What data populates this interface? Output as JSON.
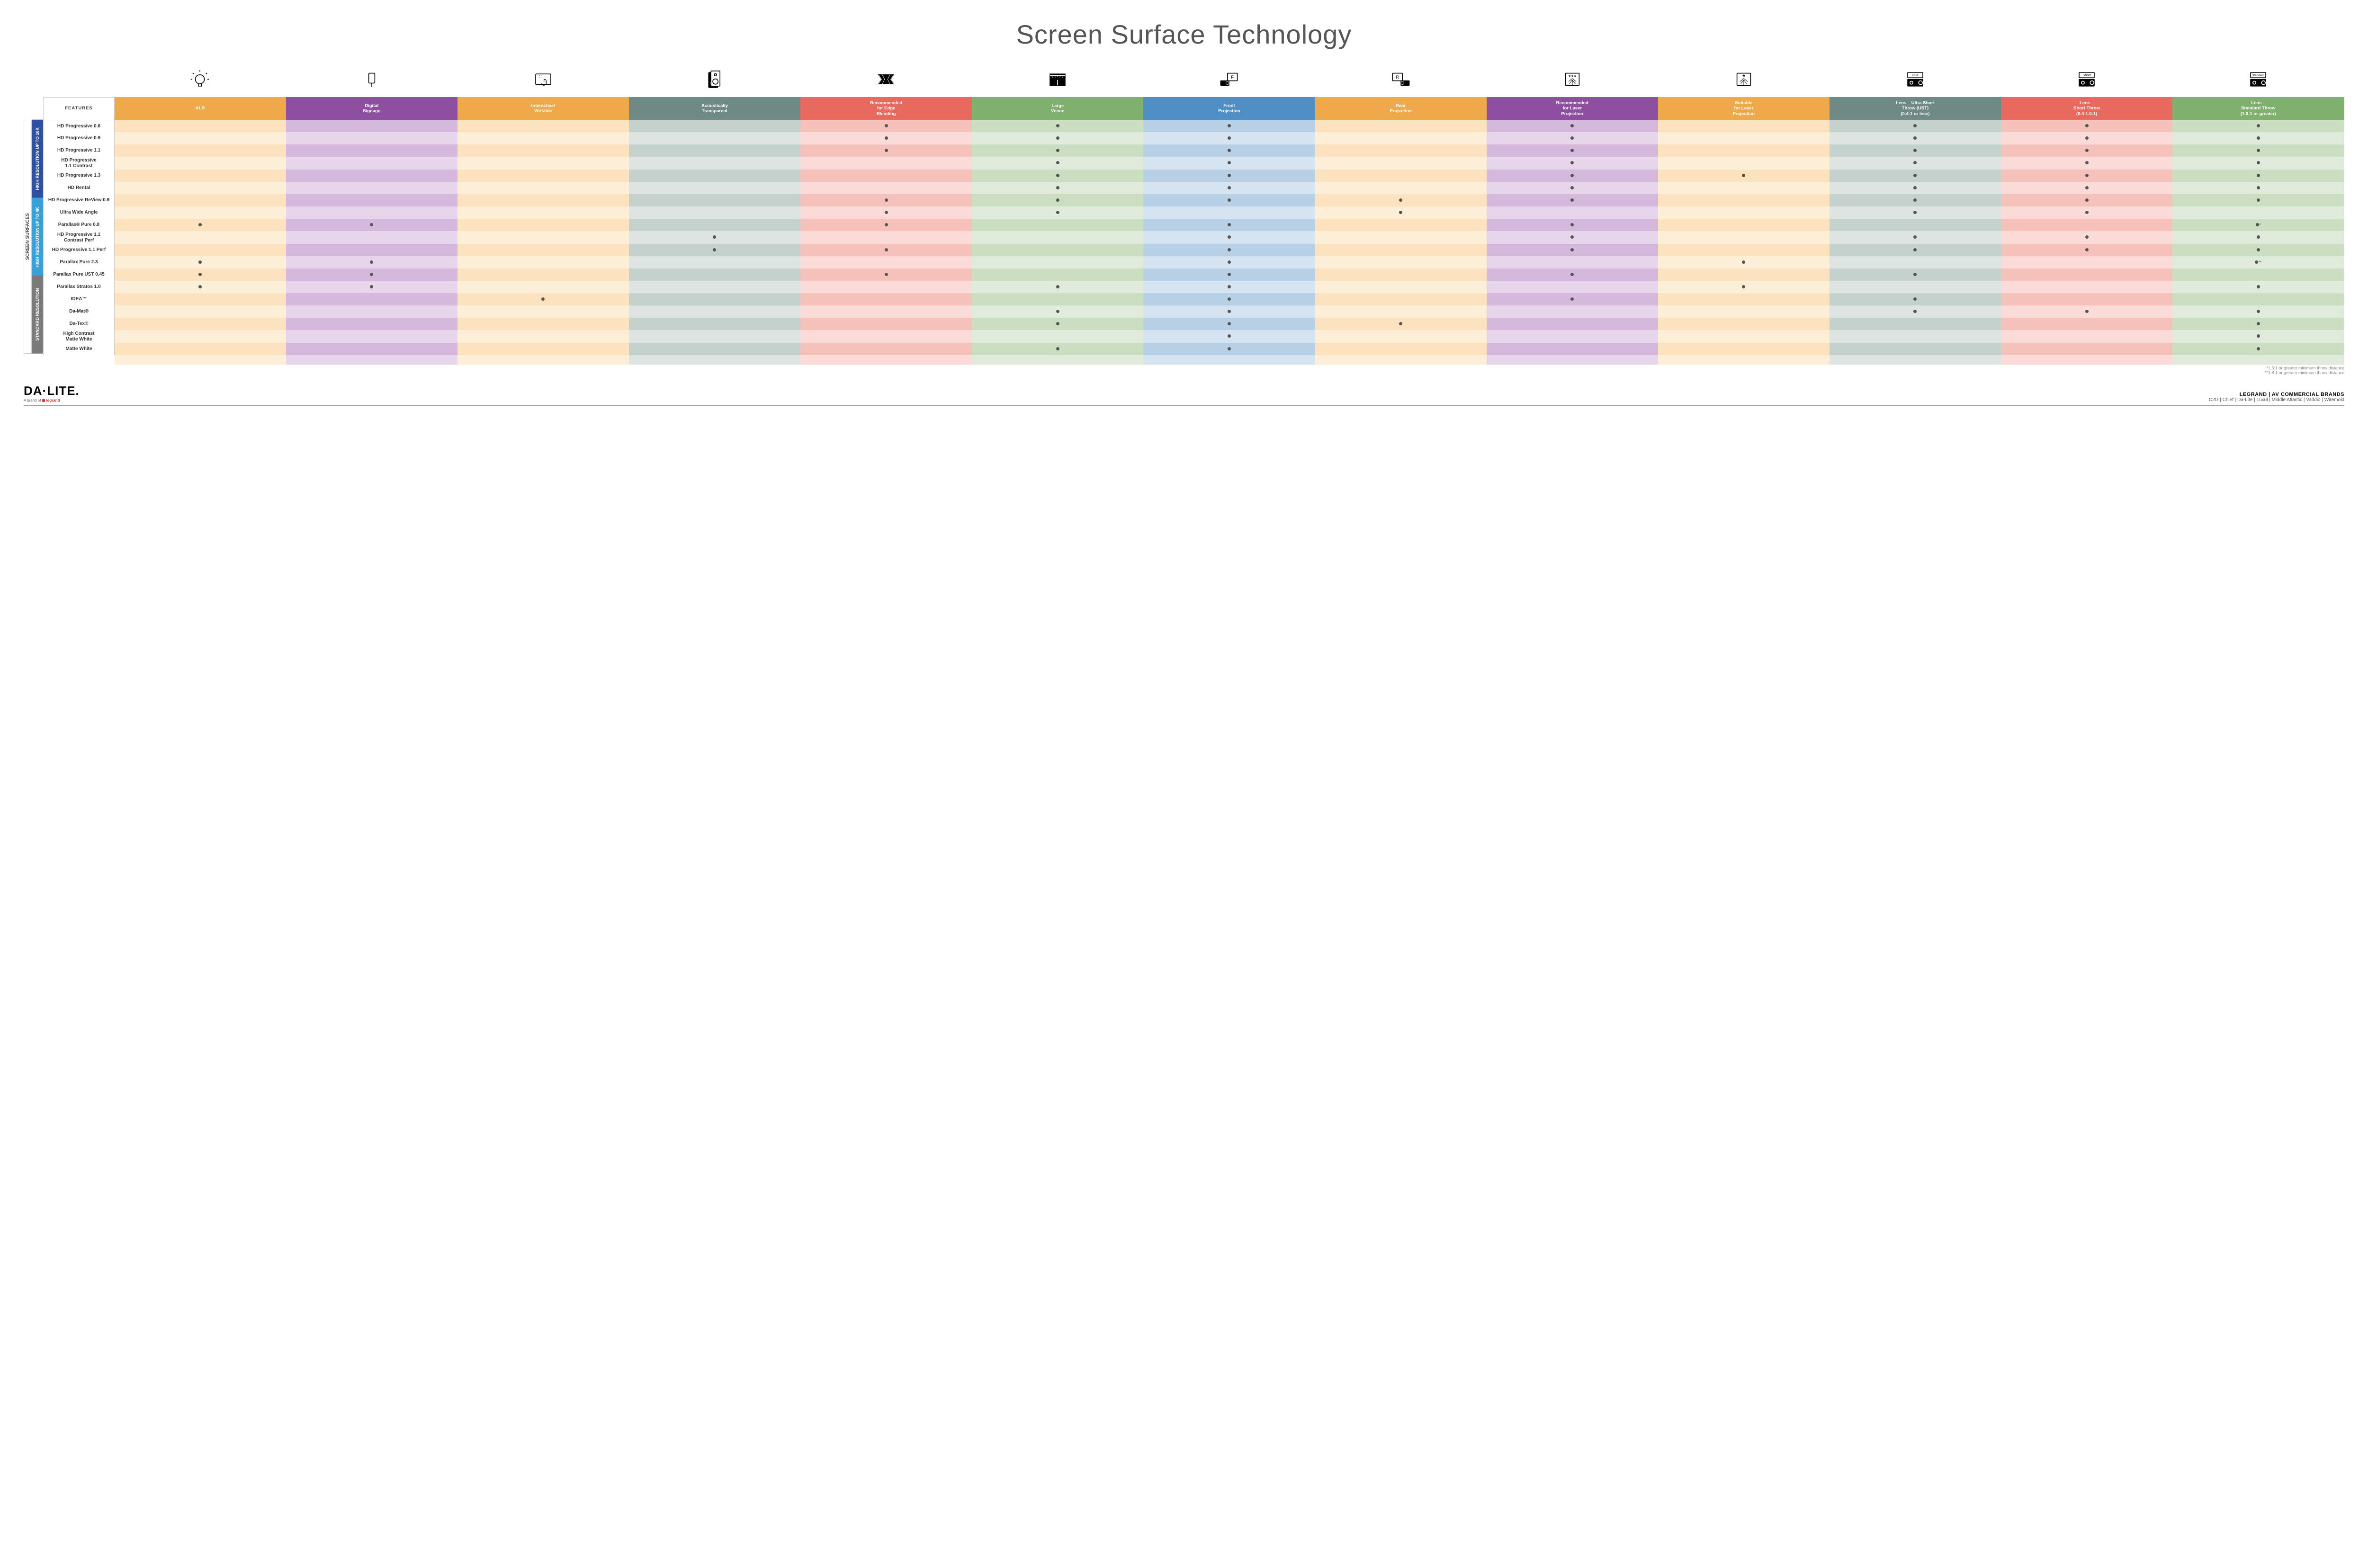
{
  "title": "Screen Surface Technology",
  "features_header": "FEATURES",
  "columns": [
    {
      "key": "alr",
      "label": "ALR",
      "color": "#f0a94a",
      "light": "#fce2bf",
      "lighter": "#fdeed8"
    },
    {
      "key": "signage",
      "label": "Digital\nSignage",
      "color": "#8e4fa1",
      "light": "#d5b9dd",
      "lighter": "#e6d5eb"
    },
    {
      "key": "interactive",
      "label": "Interactive/\nWritable",
      "color": "#f0a94a",
      "light": "#fce2bf",
      "lighter": "#fdeed8"
    },
    {
      "key": "acoustic",
      "label": "Acoustically\nTransparent",
      "color": "#6f8a84",
      "light": "#c4d1cd",
      "lighter": "#dde4e2"
    },
    {
      "key": "edge",
      "label": "Recommended\nfor Edge\nBlending",
      "color": "#e86a5e",
      "light": "#f6c1bb",
      "lighter": "#fadbd7"
    },
    {
      "key": "large",
      "label": "Large\nVenue",
      "color": "#7fb06e",
      "light": "#cbdec2",
      "lighter": "#e1ebdb"
    },
    {
      "key": "front",
      "label": "Front\nProjection",
      "color": "#4f8fc6",
      "light": "#b8d0e6",
      "lighter": "#d6e3f1"
    },
    {
      "key": "rear",
      "label": "Rear\nProjection",
      "color": "#f0a94a",
      "light": "#fce2bf",
      "lighter": "#fdeed8"
    },
    {
      "key": "reclaser",
      "label": "Recommended\nfor Laser\nProjection",
      "color": "#8e4fa1",
      "light": "#d5b9dd",
      "lighter": "#e6d5eb"
    },
    {
      "key": "suitlaser",
      "label": "Suitable\nfor Laser\nProjection",
      "color": "#f0a94a",
      "light": "#fce2bf",
      "lighter": "#fdeed8"
    },
    {
      "key": "ust",
      "label": "Lens – Ultra Short\nThrow (UST)\n(0.4:1 or less)",
      "color": "#6f8a84",
      "light": "#c4d1cd",
      "lighter": "#dde4e2"
    },
    {
      "key": "short",
      "label": "Lens –\nShort Throw\n(0.4-1.0:1)",
      "color": "#e86a5e",
      "light": "#f6c1bb",
      "lighter": "#fadbd7"
    },
    {
      "key": "std",
      "label": "Lens –\nStandard Throw\n(1.0:1 or greater)",
      "color": "#7fb06e",
      "light": "#cbdec2",
      "lighter": "#e1ebdb"
    }
  ],
  "groups": [
    {
      "key": "g16k",
      "label": "HIGH RESOLUTION UP TO 16K",
      "color": "#2f4fa0"
    },
    {
      "key": "g4k",
      "label": "HIGH RESOLUTION UP TO 4K",
      "color": "#3aa0d8"
    },
    {
      "key": "gstd",
      "label": "STANDARD\nRESOLUTION",
      "color": "#7a7a7a"
    }
  ],
  "outer_group_label": "SCREEN SURFACES",
  "rows": [
    {
      "g": "g16k",
      "label": "HD Progressive 0.6",
      "cells": {
        "edge": "•",
        "large": "•",
        "front": "•",
        "reclaser": "•",
        "ust": "•",
        "short": "•",
        "std": "•"
      }
    },
    {
      "g": "g16k",
      "label": "HD Progressive 0.9",
      "cells": {
        "edge": "•",
        "large": "•",
        "front": "•",
        "reclaser": "•",
        "ust": "•",
        "short": "•",
        "std": "•"
      }
    },
    {
      "g": "g16k",
      "label": "HD Progressive 1.1",
      "cells": {
        "edge": "•",
        "large": "•",
        "front": "•",
        "reclaser": "•",
        "ust": "•",
        "short": "•",
        "std": "•"
      }
    },
    {
      "g": "g16k",
      "label": "HD Progressive\n1.1 Contrast",
      "cells": {
        "large": "•",
        "front": "•",
        "reclaser": "•",
        "ust": "•",
        "short": "•",
        "std": "•"
      }
    },
    {
      "g": "g16k",
      "label": "HD Progressive 1.3",
      "cells": {
        "large": "•",
        "front": "•",
        "reclaser": "•",
        "suitlaser": "•",
        "ust": "•",
        "short": "•",
        "std": "•"
      }
    },
    {
      "g": "g16k",
      "label": "HD Rental",
      "cells": {
        "large": "•",
        "front": "•",
        "reclaser": "•",
        "ust": "•",
        "short": "•",
        "std": "•"
      }
    },
    {
      "g": "g16k",
      "label": "HD Progressive ReView 0.9",
      "cells": {
        "edge": "•",
        "large": "•",
        "front": "•",
        "rear": "•",
        "reclaser": "•",
        "ust": "•",
        "short": "•",
        "std": "•"
      }
    },
    {
      "g": "g16k",
      "label": "Ultra Wide Angle",
      "cells": {
        "edge": "•",
        "large": "•",
        "rear": "•",
        "ust": "•",
        "short": "•"
      }
    },
    {
      "g": "g16k",
      "label": "Parallax® Pure 0.8",
      "cells": {
        "alr": "•",
        "signage": "•",
        "edge": "•",
        "front": "•",
        "reclaser": "•",
        "std": "•*"
      }
    },
    {
      "g": "g4k",
      "label": "HD Progressive 1.1\nContrast Perf",
      "cells": {
        "acoustic": "•",
        "front": "•",
        "reclaser": "•",
        "ust": "•",
        "short": "•",
        "std": "•"
      }
    },
    {
      "g": "g4k",
      "label": "HD Progressive 1.1 Perf",
      "cells": {
        "acoustic": "•",
        "edge": "•",
        "front": "•",
        "reclaser": "•",
        "ust": "•",
        "short": "•",
        "std": "•"
      }
    },
    {
      "g": "g4k",
      "label": "Parallax Pure 2.3",
      "cells": {
        "alr": "•",
        "signage": "•",
        "front": "•",
        "suitlaser": "•",
        "std": "•**"
      }
    },
    {
      "g": "g4k",
      "label": "Parallax Pure UST 0.45",
      "cells": {
        "alr": "•",
        "signage": "•",
        "edge": "•",
        "front": "•",
        "reclaser": "•",
        "ust": "•"
      }
    },
    {
      "g": "g4k",
      "label": "Parallax Stratos 1.0",
      "cells": {
        "alr": "•",
        "signage": "•",
        "large": "•",
        "front": "•",
        "suitlaser": "•",
        "std": "•"
      }
    },
    {
      "g": "g4k",
      "label": "IDEA™",
      "cells": {
        "interactive": "•",
        "front": "•",
        "reclaser": "•",
        "ust": "•"
      }
    },
    {
      "g": "gstd",
      "label": "Da-Mat®",
      "cells": {
        "large": "•",
        "front": "•",
        "ust": "•",
        "short": "•",
        "std": "•"
      }
    },
    {
      "g": "gstd",
      "label": "Da-Tex®",
      "cells": {
        "large": "•",
        "front": "•",
        "rear": "•",
        "std": "•"
      }
    },
    {
      "g": "gstd",
      "label": "High Contrast\nMatte White",
      "cells": {
        "front": "•",
        "std": "•"
      }
    },
    {
      "g": "gstd",
      "label": "Matte White",
      "cells": {
        "large": "•",
        "front": "•",
        "std": "•"
      }
    }
  ],
  "footnotes": [
    "*1.5:1 or greater minimum throw distance",
    "**1.8:1 or greater minimum throw distance"
  ],
  "logo": {
    "main": "DA·LITE.",
    "sub_prefix": "A brand of ",
    "sub_brand": "legrand"
  },
  "brands": {
    "top": "LEGRAND | AV COMMERCIAL BRANDS",
    "list": [
      "C2G",
      "Chief",
      "Da-Lite",
      "Luxul",
      "Middle Atlantic",
      "Vaddio",
      "Wiremold"
    ]
  },
  "icons": {
    "alr": "bulb",
    "signage": "signage",
    "interactive": "touch",
    "acoustic": "speaker",
    "edge": "blend",
    "large": "venue",
    "front": "front",
    "rear": "rear",
    "reclaser": "laser3",
    "suitlaser": "laser1",
    "ust": "projUST",
    "short": "projShort",
    "std": "projStd"
  }
}
